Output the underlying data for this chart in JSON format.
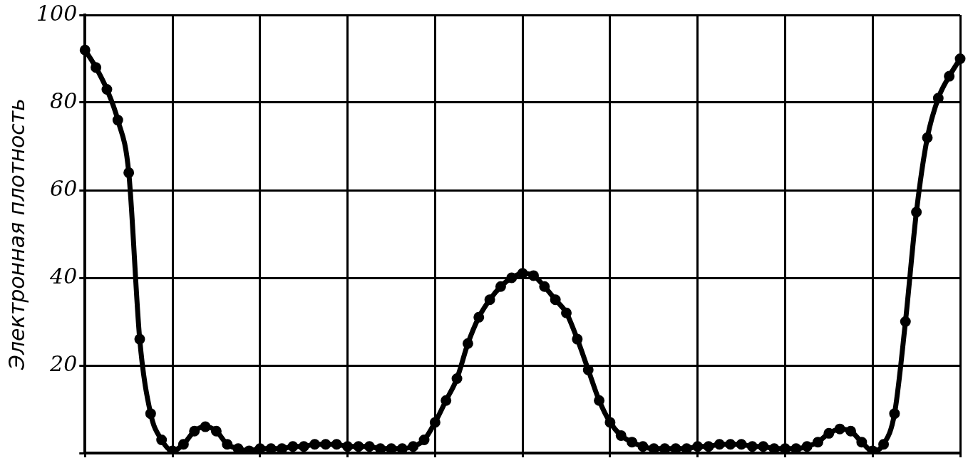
{
  "chart_data": {
    "type": "line",
    "ylabel": "Электронная плотность",
    "categories": [
      null,
      null,
      null,
      null,
      null,
      null,
      null,
      null,
      null,
      null,
      null,
      null,
      null,
      null,
      null,
      null,
      null,
      null,
      null,
      null,
      null,
      null,
      null,
      null,
      null,
      null,
      null,
      null,
      null,
      null,
      null,
      null,
      null,
      null,
      null,
      null,
      null,
      null,
      null,
      null,
      null,
      null,
      null,
      null,
      null,
      null,
      null,
      null,
      null,
      null,
      null,
      null,
      null,
      null,
      null,
      null,
      null,
      null,
      null,
      null,
      null,
      null,
      null,
      null,
      null,
      null,
      null,
      null,
      null,
      null,
      null,
      null,
      null,
      null,
      null,
      null,
      null,
      null,
      null,
      null,
      null
    ],
    "series": [
      {
        "color": "#000000",
        "values": [
          92,
          88,
          83,
          76,
          64,
          26,
          9,
          3,
          0.5,
          2,
          5,
          6,
          5,
          2,
          1,
          0.5,
          1,
          1,
          1,
          1.5,
          1.5,
          2,
          2,
          2,
          1.5,
          1.5,
          1.5,
          1,
          1,
          1,
          1.5,
          3,
          7,
          12,
          17,
          25,
          31,
          35,
          38,
          40,
          41,
          40.5,
          38,
          35,
          32,
          26,
          19,
          12,
          7,
          4,
          2.5,
          1.5,
          1,
          1,
          1,
          1,
          1.5,
          1.5,
          2,
          2,
          2,
          1.5,
          1.5,
          1,
          1,
          1,
          1.5,
          2.5,
          4.5,
          5.5,
          5,
          2.5,
          0.5,
          2,
          9,
          30,
          55,
          72,
          81,
          86,
          90
        ]
      }
    ],
    "ylim": [
      0,
      100
    ],
    "yticks": [
      {
        "value": 0,
        "label": null
      },
      20,
      40,
      60,
      80,
      100
    ],
    "grid": true,
    "marker": "circle",
    "line_style": "solid",
    "tick_labels": "y"
  }
}
